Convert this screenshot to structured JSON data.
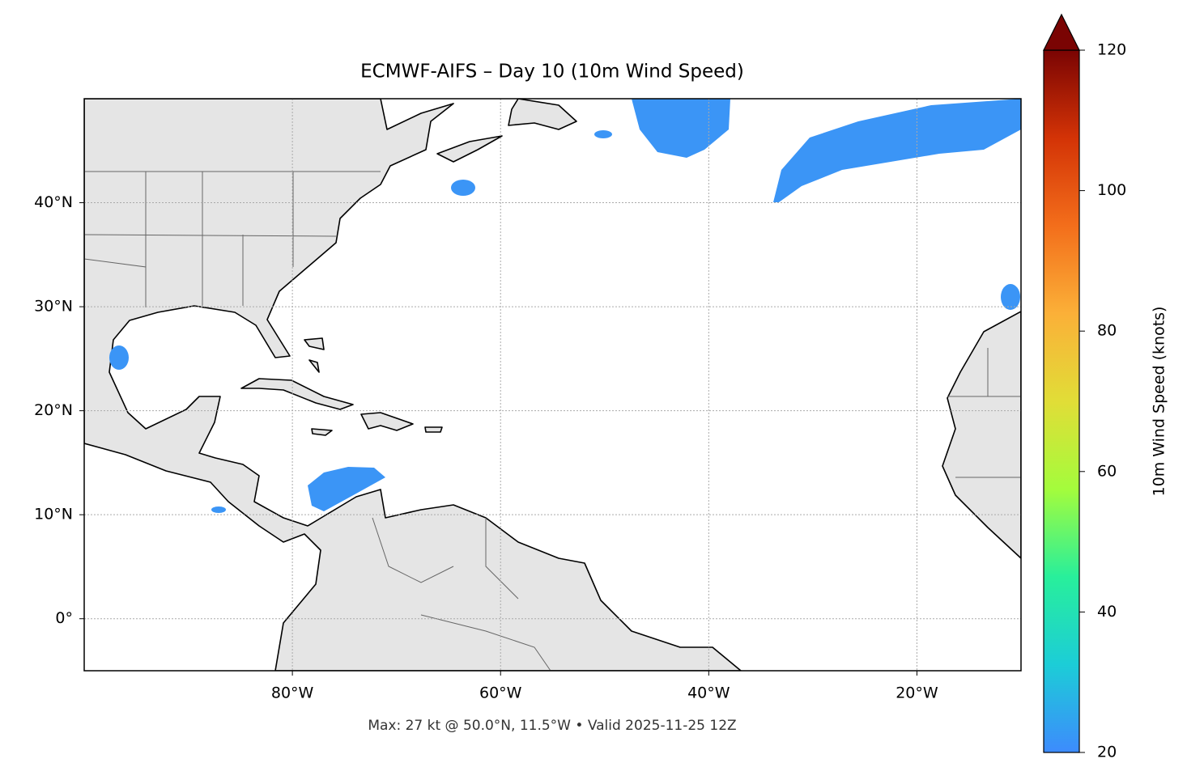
{
  "title": "ECMWF-AIFS – Day 10 (10m Wind Speed)",
  "map": {
    "lonlim": [
      -100,
      -10
    ],
    "latlim": [
      -5,
      50
    ],
    "lon_ticks": [
      {
        "value": -80,
        "label": "80°W"
      },
      {
        "value": -60,
        "label": "60°W"
      },
      {
        "value": -40,
        "label": "40°W"
      },
      {
        "value": -20,
        "label": "20°W"
      }
    ],
    "lat_ticks": [
      {
        "value": 0,
        "label": "0°"
      },
      {
        "value": 10,
        "label": "10°N"
      },
      {
        "value": 20,
        "label": "20°N"
      },
      {
        "value": 30,
        "label": "30°N"
      },
      {
        "value": 40,
        "label": "40°N"
      }
    ],
    "grid": true
  },
  "colorbar": {
    "label": "10m Wind Speed (knots)",
    "lim": [
      20,
      120
    ],
    "ticks": [
      20,
      40,
      60,
      80,
      100,
      120
    ],
    "colors": [
      "#3d8bfd",
      "#1ccdd7",
      "#28ef9b",
      "#a4fc3c",
      "#e1dd37",
      "#fbb038",
      "#f36e1b",
      "#d33306",
      "#7a0403"
    ]
  },
  "footer": "Max: 27 kt @ 50.0°N, 11.5°W • Valid 2025-11-25 12Z"
}
